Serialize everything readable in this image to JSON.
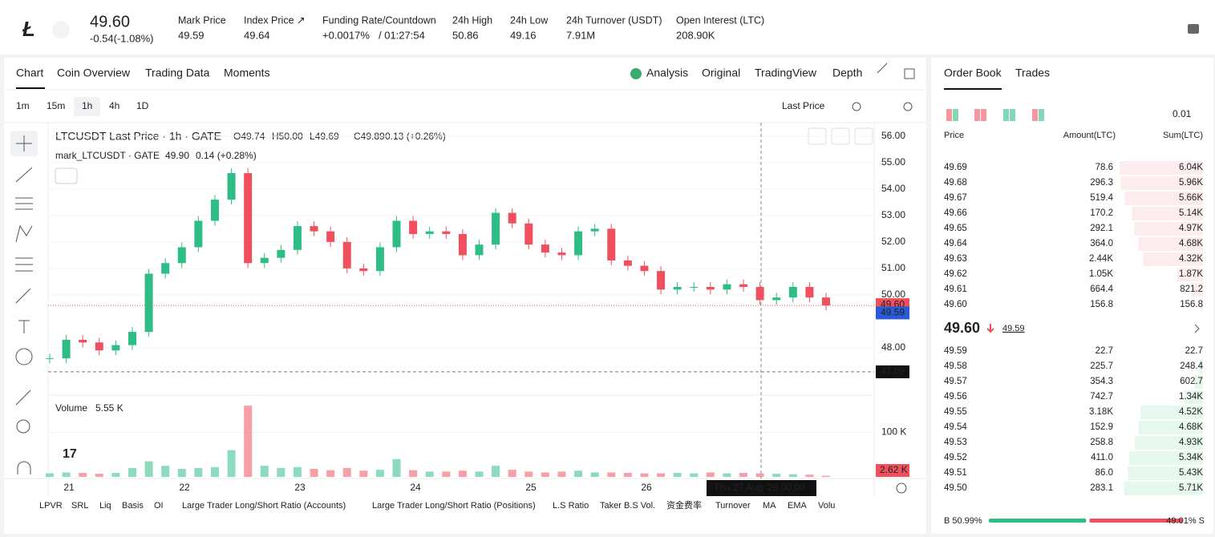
{
  "header": {
    "price": "49.60",
    "change": "-0.54(-1.08%)",
    "stats": [
      {
        "label": "Mark Price",
        "value": "49.59"
      },
      {
        "label": "Index Price ↗",
        "value": "49.64"
      },
      {
        "label": "Funding Rate/Countdown",
        "value": "+0.0017%",
        "extra": "/ 01:27:54"
      },
      {
        "label": "24h High",
        "value": "50.86"
      },
      {
        "label": "24h Low",
        "value": "49.16"
      },
      {
        "label": "24h Turnover (USDT)",
        "value": "7.91M"
      },
      {
        "label": "Open Interest (LTC)",
        "value": "208.90K"
      }
    ]
  },
  "tabs": [
    "Chart",
    "Coin Overview",
    "Trading Data",
    "Moments"
  ],
  "views": [
    "Analysis",
    "Original",
    "TradingView",
    "Depth"
  ],
  "timeframes": [
    "1m",
    "15m",
    "1h",
    "4h",
    "1D"
  ],
  "price_source": "Last Price",
  "legend": {
    "symbol": "LTCUSDT Last Price · 1h · GATE",
    "ohlc": [
      "O49.74",
      "H50.00",
      "L49.69",
      "C49.89",
      "0.13 (+0.26%)"
    ],
    "mark": "mark_LTCUSDT · GATE",
    "mark_value": "49.90",
    "mark_change": "0.14 (+0.28%)",
    "volume": "Volume",
    "volume_value": "5.55 K"
  },
  "chart_data": {
    "type": "candlestick",
    "closes": [
      47.6,
      48.3,
      48.2,
      47.9,
      48.1,
      48.6,
      50.8,
      51.2,
      51.8,
      52.8,
      53.6,
      54.6,
      51.2,
      51.4,
      51.7,
      52.6,
      52.4,
      52.0,
      51.0,
      50.9,
      51.8,
      52.8,
      52.3,
      52.4,
      52.3,
      51.5,
      51.9,
      53.1,
      52.7,
      51.9,
      51.6,
      51.5,
      52.4,
      52.5,
      51.3,
      51.1,
      50.9,
      50.2,
      50.3,
      50.3,
      50.2,
      50.4,
      50.3,
      49.8,
      49.9,
      50.3,
      49.9,
      49.6
    ],
    "volumes": [
      8000,
      10000,
      9000,
      7000,
      9000,
      20000,
      35000,
      25000,
      18000,
      20000,
      22000,
      60000,
      160000,
      25000,
      20000,
      22000,
      18000,
      15000,
      20000,
      14000,
      16000,
      40000,
      15000,
      12000,
      12000,
      14000,
      12000,
      25000,
      16000,
      12000,
      10000,
      12000,
      14000,
      10000,
      10000,
      9000,
      8000,
      8000,
      9000,
      8000,
      10000,
      8000,
      9000,
      8000,
      7000,
      6000,
      5000,
      2620
    ],
    "up_color": "#2ebd85",
    "down_color": "#f0505e",
    "ylim": [
      46.3,
      56.45
    ],
    "yticks": [
      {
        "value": 56,
        "label": "56.00"
      },
      {
        "value": 55,
        "label": "55.00"
      },
      {
        "value": 54,
        "label": "54.00"
      },
      {
        "value": 53,
        "label": "53.00"
      },
      {
        "value": 52,
        "label": "52.00"
      },
      {
        "value": 51,
        "label": "51.00"
      },
      {
        "value": 50,
        "label": "50.00"
      },
      {
        "value": 48,
        "label": "48.00"
      }
    ],
    "volume_ylim": [
      0,
      180000
    ],
    "volume_ticks": [
      {
        "value": 100000,
        "label": "100 K"
      }
    ],
    "last_volume": {
      "value": 2620,
      "label": "2.62 K"
    },
    "price_tags": [
      {
        "value": 49.6,
        "label": "49.60"
      },
      {
        "value": 49.59,
        "label": "49.59"
      },
      {
        "value": 47.09,
        "label": "47.09"
      }
    ],
    "x_labels": [
      "21",
      "22",
      "23",
      "24",
      "25",
      "26"
    ],
    "crosshair_label": "Thu 27 Aug '26   00:00"
  },
  "indicators": [
    "LPVR",
    "SRL",
    "Liq",
    "Basis",
    "OI",
    "Large Trader Long/Short Ratio (Accounts)",
    "Large Trader Long/Short Ratio (Positions)",
    "L.S Ratio",
    "Taker B.S Vol.",
    "资金费率",
    "Turnover",
    "MA",
    "EMA",
    "Volu"
  ],
  "order_book": {
    "tabs": [
      "Order Book",
      "Trades"
    ],
    "precision": "0.01",
    "headers": [
      "Price",
      "Amount(LTC)",
      "Sum(LTC)"
    ],
    "asks": [
      [
        "49.69",
        "78.6",
        {
          "value": 6040,
          "label": "6.04K"
        }
      ],
      [
        "49.68",
        "296.3",
        {
          "value": 5960,
          "label": "5.96K"
        }
      ],
      [
        "49.67",
        "519.4",
        {
          "value": 5660,
          "label": "5.66K"
        }
      ],
      [
        "49.66",
        "170.2",
        {
          "value": 5140,
          "label": "5.14K"
        }
      ],
      [
        "49.65",
        "292.1",
        {
          "value": 4970,
          "label": "4.97K"
        }
      ],
      [
        "49.64",
        "364.0",
        {
          "value": 4680,
          "label": "4.68K"
        }
      ],
      [
        "49.63",
        "2.44K",
        {
          "value": 4320,
          "label": "4.32K"
        }
      ],
      [
        "49.62",
        "1.05K",
        {
          "value": 1870,
          "label": "1.87K"
        }
      ],
      [
        "49.61",
        "664.4",
        {
          "value": 821.2,
          "label": "821.2"
        }
      ],
      [
        "49.60",
        "156.8",
        {
          "value": 156.8,
          "label": "156.8"
        }
      ]
    ],
    "last": "49.60",
    "mark": "49.59",
    "bids": [
      [
        "49.59",
        "22.7",
        {
          "value": 22.7,
          "label": "22.7"
        }
      ],
      [
        "49.58",
        "225.7",
        {
          "value": 248.4,
          "label": "248.4"
        }
      ],
      [
        "49.57",
        "354.3",
        {
          "value": 602.7,
          "label": "602.7"
        }
      ],
      [
        "49.56",
        "742.7",
        {
          "value": 1340,
          "label": "1.34K"
        }
      ],
      [
        "49.55",
        "3.18K",
        {
          "value": 4520,
          "label": "4.52K"
        }
      ],
      [
        "49.54",
        "152.9",
        {
          "value": 4680,
          "label": "4.68K"
        }
      ],
      [
        "49.53",
        "258.8",
        {
          "value": 4930,
          "label": "4.93K"
        }
      ],
      [
        "49.52",
        "411.0",
        {
          "value": 5340,
          "label": "5.34K"
        }
      ],
      [
        "49.51",
        "86.0",
        {
          "value": 5430,
          "label": "5.43K"
        }
      ],
      [
        "49.50",
        "283.1",
        {
          "value": 5710,
          "label": "5.71K"
        }
      ]
    ],
    "buy_ratio": {
      "value": 50.99,
      "label": "B 50.99%"
    },
    "sell_ratio": {
      "value": 49.01,
      "label": "49.01% S"
    }
  }
}
